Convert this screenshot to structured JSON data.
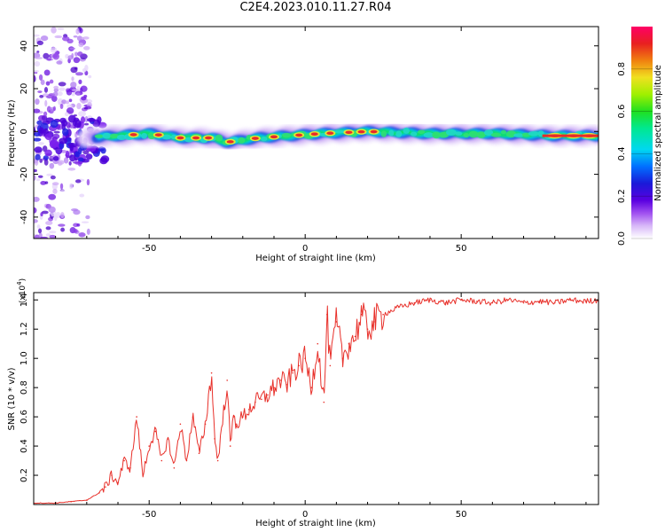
{
  "title": "C2E4.2023.010.11.27.R04",
  "colors": {
    "snr_line": "#e8302a",
    "axis": "#000000",
    "colormap": [
      "#ffffff",
      "#d8b8f8",
      "#a050f0",
      "#5a00e0",
      "#1a1ad8",
      "#00a8ff",
      "#00e8d0",
      "#20e040",
      "#a0f000",
      "#f0e020",
      "#f08010",
      "#e82020",
      "#ff0066"
    ]
  },
  "chart_data": [
    {
      "type": "heatmap",
      "xlabel": "Height of straight line (km)",
      "ylabel": "Frequency (Hz)",
      "xlim": [
        -87,
        94
      ],
      "ylim": [
        -50,
        49
      ],
      "xticks": [
        -50,
        0,
        50
      ],
      "yticks": [
        -40,
        -20,
        0,
        20,
        40
      ],
      "colorbar": {
        "label": "Normalized spectral amplitude",
        "range": [
          0,
          1
        ],
        "ticks": [
          0.0,
          0.2,
          0.4,
          0.6,
          0.8
        ]
      },
      "ridge_center_hz": [
        {
          "x": -70,
          "y": -3
        },
        {
          "x": -60,
          "y": -2
        },
        {
          "x": -50,
          "y": -1
        },
        {
          "x": -40,
          "y": -3
        },
        {
          "x": -30,
          "y": -3
        },
        {
          "x": -25,
          "y": -5
        },
        {
          "x": -15,
          "y": -3
        },
        {
          "x": -5,
          "y": -2
        },
        {
          "x": 5,
          "y": -1
        },
        {
          "x": 20,
          "y": 0
        },
        {
          "x": 40,
          "y": -1
        },
        {
          "x": 60,
          "y": -1
        },
        {
          "x": 80,
          "y": -2
        },
        {
          "x": 94,
          "y": -2
        }
      ]
    },
    {
      "type": "line",
      "xlabel": "Height of straight line (km)",
      "ylabel": "SNR (10 * v/v)",
      "y_multiplier": "(x10",
      "y_multiplier_exp": "4",
      "y_multiplier_close": ")",
      "xlim": [
        -87,
        94
      ],
      "ylim": [
        0,
        1.45
      ],
      "xticks": [
        -50,
        0,
        50
      ],
      "yticks": [
        0.2,
        0.4,
        0.6,
        0.8,
        1.0,
        1.2,
        1.4
      ],
      "series": [
        {
          "color": "#e8302a",
          "x": [
            -87,
            -80,
            -75,
            -70,
            -66,
            -64,
            -62,
            -60,
            -58,
            -56,
            -54,
            -52,
            -50,
            -48,
            -46,
            -44,
            -42,
            -40,
            -38,
            -36,
            -34,
            -32,
            -30,
            -29,
            -28,
            -26,
            -25,
            -24,
            -23,
            -22,
            -20,
            -18,
            -16,
            -14,
            -12,
            -10,
            -8,
            -6,
            -4,
            -2,
            0,
            2,
            4,
            6,
            7,
            8,
            10,
            12,
            14,
            16,
            18,
            20,
            22,
            25,
            30,
            35,
            40,
            45,
            50,
            55,
            60,
            65,
            70,
            75,
            80,
            85,
            90,
            94
          ],
          "values": [
            0.01,
            0.01,
            0.02,
            0.03,
            0.08,
            0.12,
            0.2,
            0.15,
            0.3,
            0.25,
            0.6,
            0.2,
            0.4,
            0.5,
            0.3,
            0.45,
            0.25,
            0.55,
            0.3,
            0.6,
            0.35,
            0.55,
            0.9,
            0.45,
            0.3,
            0.65,
            0.85,
            0.4,
            0.6,
            0.55,
            0.6,
            0.65,
            0.7,
            0.72,
            0.75,
            0.8,
            0.85,
            0.82,
            0.9,
            0.95,
            1.0,
            0.8,
            1.1,
            0.7,
            1.3,
            0.95,
            1.25,
            1.0,
            1.1,
            1.15,
            1.3,
            1.2,
            1.25,
            1.3,
            1.35,
            1.38,
            1.4,
            1.38,
            1.4,
            1.39,
            1.38,
            1.4,
            1.38,
            1.39,
            1.38,
            1.4,
            1.39,
            1.4
          ]
        }
      ]
    }
  ]
}
